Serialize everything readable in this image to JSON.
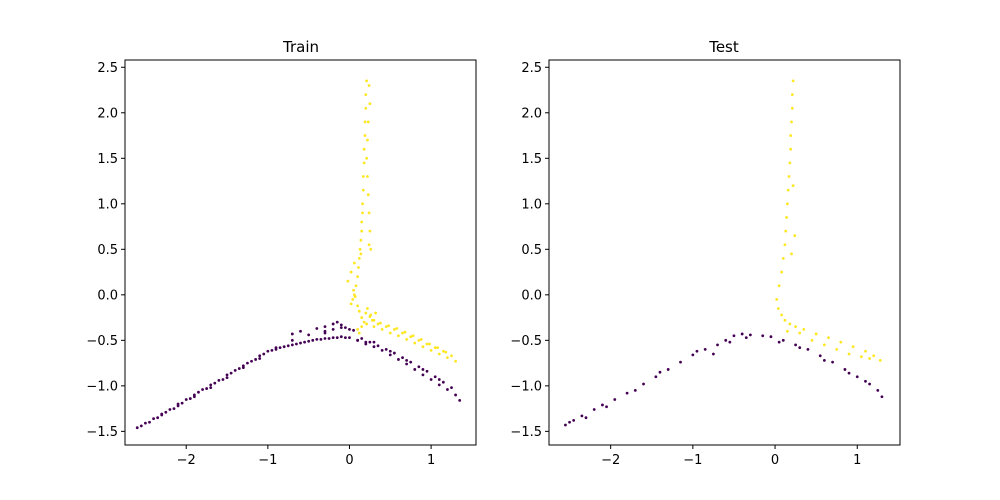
{
  "colors": {
    "class_a": "#440154",
    "class_b": "#fde725",
    "frame": "#000000",
    "background": "#ffffff"
  },
  "chart_data": [
    {
      "type": "scatter",
      "title": "Train",
      "xlabel": "",
      "ylabel": "",
      "xlim": [
        -2.75,
        1.55
      ],
      "ylim": [
        -1.65,
        2.58
      ],
      "xticks": [
        -2,
        -1,
        0,
        1
      ],
      "xtick_labels": [
        "−2",
        "−1",
        "0",
        "1"
      ],
      "yticks": [
        -1.5,
        -1.0,
        -0.5,
        0.0,
        0.5,
        1.0,
        1.5,
        2.0,
        2.5
      ],
      "ytick_labels": [
        "−1.5",
        "−1.0",
        "−0.5",
        "0.0",
        "0.5",
        "1.0",
        "1.5",
        "2.0",
        "2.5"
      ],
      "grid": false,
      "series": [
        {
          "color": "#440154",
          "x": [
            -2.6,
            -2.5,
            -2.4,
            -2.3,
            -2.2,
            -2.1,
            -2.0,
            -1.9,
            -1.8,
            -1.7,
            -1.6,
            -1.5,
            -1.4,
            -1.3,
            -1.2,
            -1.1,
            -1.0,
            -0.9,
            -0.8,
            -0.7,
            -0.6,
            -0.5,
            -0.4,
            -0.3,
            -0.2,
            -0.1,
            0.0,
            0.1,
            0.2,
            -2.55,
            -2.45,
            -2.35,
            -2.25,
            -2.15,
            -2.05,
            -1.95,
            -1.85,
            -1.75,
            -1.65,
            -1.55,
            -1.45,
            -1.35,
            -1.25,
            -1.15,
            -1.05,
            -0.95,
            -0.85,
            -0.75,
            -0.65,
            -0.55,
            -0.45,
            -0.35,
            -0.25,
            -0.15,
            -0.05,
            -2.3,
            -2.1,
            -1.9,
            -1.7,
            -1.5,
            -1.3,
            -1.1,
            -0.9,
            -0.7,
            -0.5,
            -0.3,
            0.1,
            0.2,
            0.3,
            0.4,
            0.5,
            0.6,
            0.7,
            0.8,
            0.9,
            1.0,
            1.1,
            1.2,
            1.3,
            1.35,
            0.15,
            0.25,
            0.35,
            0.45,
            0.55,
            0.65,
            0.75,
            0.85,
            0.95,
            1.05,
            1.15,
            1.25,
            0.3,
            0.5,
            0.7,
            0.9,
            1.1,
            -0.7,
            -0.6,
            -0.4,
            -0.3,
            -0.2,
            -0.15,
            -0.1,
            -0.05,
            0.0,
            0.05,
            -0.3,
            -0.2,
            -0.1
          ],
          "y": [
            -1.46,
            -1.41,
            -1.36,
            -1.31,
            -1.26,
            -1.2,
            -1.15,
            -1.1,
            -1.04,
            -0.99,
            -0.94,
            -0.88,
            -0.83,
            -0.78,
            -0.73,
            -0.67,
            -0.62,
            -0.6,
            -0.57,
            -0.55,
            -0.53,
            -0.51,
            -0.49,
            -0.48,
            -0.47,
            -0.46,
            -0.47,
            -0.5,
            -0.52,
            -1.44,
            -1.4,
            -1.35,
            -1.29,
            -1.25,
            -1.19,
            -1.14,
            -1.07,
            -1.03,
            -0.97,
            -0.93,
            -0.86,
            -0.81,
            -0.75,
            -0.71,
            -0.65,
            -0.61,
            -0.58,
            -0.56,
            -0.54,
            -0.52,
            -0.5,
            -0.49,
            -0.48,
            -0.47,
            -0.47,
            -1.32,
            -1.22,
            -1.12,
            -1.02,
            -0.91,
            -0.8,
            -0.7,
            -0.58,
            -0.5,
            -0.44,
            -0.4,
            -0.5,
            -0.54,
            -0.57,
            -0.61,
            -0.66,
            -0.71,
            -0.76,
            -0.82,
            -0.88,
            -0.93,
            -0.99,
            -1.04,
            -1.1,
            -1.16,
            -0.48,
            -0.52,
            -0.56,
            -0.6,
            -0.64,
            -0.69,
            -0.74,
            -0.79,
            -0.84,
            -0.9,
            -0.96,
            -1.02,
            -0.52,
            -0.62,
            -0.72,
            -0.82,
            -0.93,
            -0.43,
            -0.4,
            -0.37,
            -0.35,
            -0.32,
            -0.3,
            -0.33,
            -0.36,
            -0.38,
            -0.39,
            -0.42,
            -0.38,
            -0.36
          ]
        },
        {
          "color": "#fde725",
          "x": [
            0.21,
            0.2,
            0.2,
            0.19,
            0.19,
            0.18,
            0.18,
            0.17,
            0.17,
            0.16,
            0.16,
            0.15,
            0.15,
            0.14,
            0.13,
            0.12,
            0.11,
            0.1,
            0.08,
            0.06,
            0.04,
            0.02,
            0.05,
            0.07,
            0.1,
            0.12,
            0.15,
            0.18,
            0.21,
            0.24,
            0.25,
            0.23,
            0.22,
            0.21,
            0.22,
            0.23,
            0.24,
            0.25,
            0.26,
            0.3,
            0.4,
            0.5,
            0.6,
            0.7,
            0.8,
            0.9,
            1.0,
            1.1,
            1.2,
            1.3,
            0.35,
            0.45,
            0.55,
            0.65,
            0.75,
            0.85,
            0.95,
            1.05,
            1.15,
            1.25,
            0.28,
            0.38,
            0.48,
            0.58,
            0.68,
            0.78,
            0.88,
            0.98,
            1.08,
            1.18,
            0.2,
            0.25,
            0.3,
            0.15,
            0.12,
            0.1,
            0.22,
            0.26,
            -0.02,
            0.02,
            0.06,
            0.14,
            0.24,
            0.32
          ],
          "y": [
            2.35,
            2.2,
            2.05,
            1.9,
            1.75,
            1.6,
            1.45,
            1.3,
            1.15,
            1.0,
            0.9,
            0.8,
            0.7,
            0.6,
            0.5,
            0.4,
            0.3,
            0.2,
            0.1,
            0.0,
            -0.05,
            -0.1,
            0.05,
            -0.02,
            -0.12,
            -0.18,
            -0.25,
            -0.3,
            -0.32,
            2.3,
            2.1,
            1.9,
            1.7,
            1.5,
            1.3,
            1.1,
            0.9,
            0.7,
            0.5,
            -0.35,
            -0.38,
            -0.42,
            -0.45,
            -0.49,
            -0.53,
            -0.57,
            -0.61,
            -0.65,
            -0.69,
            -0.73,
            -0.32,
            -0.35,
            -0.38,
            -0.42,
            -0.46,
            -0.5,
            -0.54,
            -0.58,
            -0.62,
            -0.67,
            -0.28,
            -0.31,
            -0.34,
            -0.37,
            -0.41,
            -0.45,
            -0.49,
            -0.54,
            -0.58,
            -0.63,
            -0.2,
            -0.24,
            -0.28,
            -0.35,
            -0.42,
            -0.38,
            -0.15,
            -0.22,
            0.15,
            0.25,
            0.35,
            0.45,
            0.55,
            -0.2
          ]
        }
      ]
    },
    {
      "type": "scatter",
      "title": "Test",
      "xlabel": "",
      "ylabel": "",
      "xlim": [
        -2.75,
        1.52
      ],
      "ylim": [
        -1.65,
        2.58
      ],
      "xticks": [
        -2,
        -1,
        0,
        1
      ],
      "xtick_labels": [
        "−2",
        "−1",
        "0",
        "1"
      ],
      "yticks": [
        -1.5,
        -1.0,
        -0.5,
        0.0,
        0.5,
        1.0,
        1.5,
        2.0,
        2.5
      ],
      "ytick_labels": [
        "−1.5",
        "−1.0",
        "−0.5",
        "0.0",
        "0.5",
        "1.0",
        "1.5",
        "2.0",
        "2.5"
      ],
      "grid": false,
      "series": [
        {
          "color": "#440154",
          "x": [
            -2.55,
            -2.45,
            -2.35,
            -2.2,
            -2.1,
            -1.95,
            -1.8,
            -1.6,
            -1.45,
            -1.3,
            -1.15,
            -1.0,
            -0.85,
            -0.7,
            -0.6,
            -0.5,
            -0.4,
            -0.3,
            -0.15,
            -0.05,
            0.1,
            0.25,
            0.4,
            0.55,
            0.7,
            0.85,
            1.0,
            1.15,
            1.25,
            1.3,
            -2.5,
            -2.3,
            -2.05,
            -1.7,
            -1.4,
            -0.95,
            -0.75,
            -0.55,
            -0.35,
            0.05,
            0.3,
            0.6,
            0.9,
            1.1
          ],
          "y": [
            -1.43,
            -1.38,
            -1.33,
            -1.26,
            -1.21,
            -1.15,
            -1.08,
            -0.98,
            -0.9,
            -0.82,
            -0.74,
            -0.66,
            -0.6,
            -0.55,
            -0.5,
            -0.45,
            -0.43,
            -0.44,
            -0.45,
            -0.46,
            -0.5,
            -0.55,
            -0.6,
            -0.67,
            -0.74,
            -0.82,
            -0.9,
            -0.98,
            -1.05,
            -1.12,
            -1.4,
            -1.35,
            -1.23,
            -1.05,
            -0.85,
            -0.62,
            -0.65,
            -0.52,
            -0.47,
            -0.52,
            -0.58,
            -0.72,
            -0.86,
            -0.95
          ]
        },
        {
          "color": "#fde725",
          "x": [
            0.22,
            0.21,
            0.21,
            0.2,
            0.19,
            0.19,
            0.18,
            0.17,
            0.16,
            0.15,
            0.14,
            0.13,
            0.12,
            0.1,
            0.08,
            0.05,
            0.02,
            0.04,
            0.08,
            0.12,
            0.18,
            0.25,
            0.35,
            0.5,
            0.65,
            0.8,
            0.95,
            1.1,
            1.2,
            1.28,
            0.3,
            0.45,
            0.6,
            0.75,
            0.9,
            1.05,
            1.15,
            0.22,
            0.24,
            0.2,
            0.15
          ],
          "y": [
            2.35,
            2.2,
            2.05,
            1.9,
            1.75,
            1.6,
            1.45,
            1.3,
            1.15,
            1.0,
            0.85,
            0.7,
            0.55,
            0.4,
            0.25,
            0.1,
            -0.05,
            -0.15,
            -0.22,
            -0.28,
            -0.32,
            -0.35,
            -0.38,
            -0.43,
            -0.47,
            -0.52,
            -0.57,
            -0.62,
            -0.67,
            -0.72,
            -0.42,
            -0.5,
            -0.55,
            -0.6,
            -0.65,
            -0.68,
            -0.7,
            1.2,
            0.65,
            0.45,
            -0.4
          ]
        }
      ]
    }
  ]
}
